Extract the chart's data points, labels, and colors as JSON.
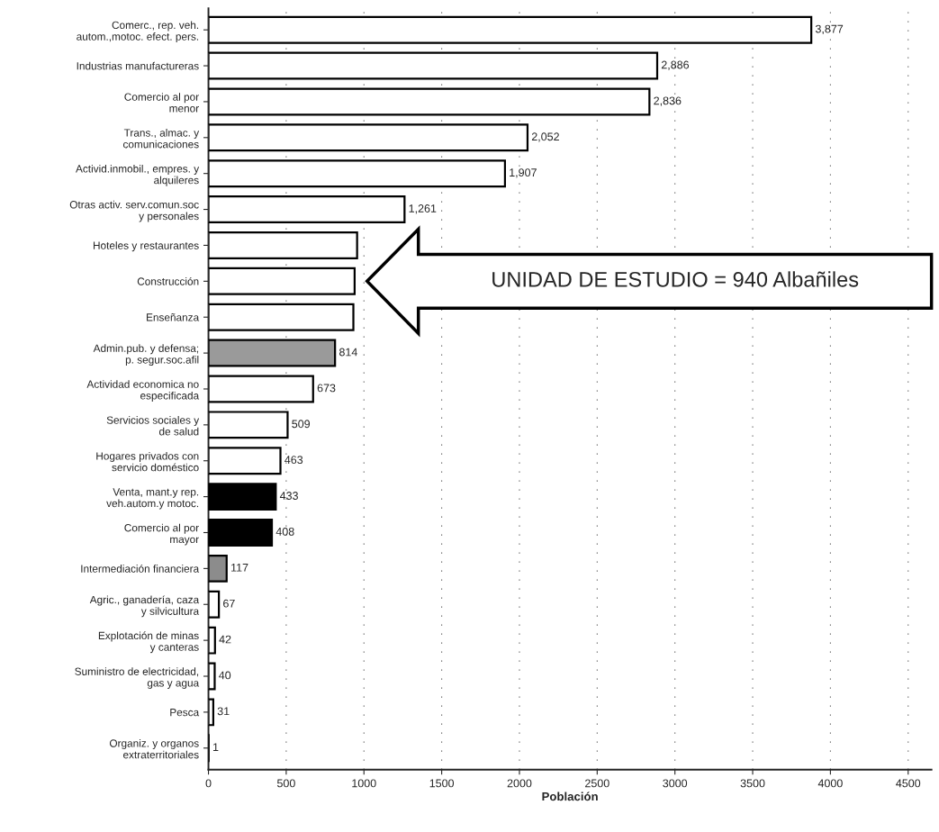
{
  "chart_data": {
    "type": "bar",
    "orientation": "horizontal",
    "xlabel": "Población",
    "categories": [
      "Comerc., rep. veh.\nautom.,motoc. efect. pers.",
      "Industrias manufactureras",
      "Comercio al por\nmenor",
      "Trans., almac. y\ncomunicaciones",
      "Activid.inmobil., empres. y\nalquileres",
      "Otras activ. serv.comun.soc\ny personales",
      "Hoteles y restaurantes",
      "Construcción",
      "Enseñanza",
      "Admin.pub. y defensa;\np. segur.soc.afil",
      "Actividad economica no\nespecificada",
      "Servicios sociales y\nde salud",
      "Hogares privados con\nservicio doméstico",
      "Venta, mant.y rep.\nveh.autom.y motoc.",
      "Comercio al por\nmayor",
      "Intermediación financiera",
      "Agric., ganadería, caza\ny silvicultura",
      "Explotación de minas\ny canteras",
      "Suministro de electricidad,\ngas y agua",
      "Pesca",
      "Organiz. y organos\nextraterritoriales"
    ],
    "values": [
      3877,
      2886,
      2836,
      2052,
      1907,
      1261,
      956,
      940,
      932,
      814,
      673,
      509,
      463,
      433,
      408,
      117,
      67,
      42,
      40,
      31,
      1
    ],
    "value_labels": [
      "3,877",
      "2,886",
      "2,836",
      "2,052",
      "1,907",
      "1,261",
      null,
      null,
      null,
      "814",
      "673",
      "509",
      "463",
      "433",
      "408",
      "117",
      "67",
      "42",
      "40",
      "31",
      "1"
    ],
    "colors": [
      "#ffffff",
      "#ffffff",
      "#ffffff",
      "#ffffff",
      "#ffffff",
      "#ffffff",
      "#ffffff",
      "#ffffff",
      "#ffffff",
      "#9a9a9a",
      "#ffffff",
      "#ffffff",
      "#ffffff",
      "#000000",
      "#000000",
      "#8c8c8c",
      "#ffffff",
      "#ffffff",
      "#ffffff",
      "#ffffff",
      "#ffffff"
    ],
    "xlim": [
      0,
      4650
    ],
    "xticks": [
      0,
      500,
      1000,
      1500,
      2000,
      2500,
      3000,
      3500,
      4000,
      4500
    ],
    "grid": "x",
    "annotations": [
      "UNIDAD DE ESTUDIO = 940 Albañiles"
    ]
  }
}
